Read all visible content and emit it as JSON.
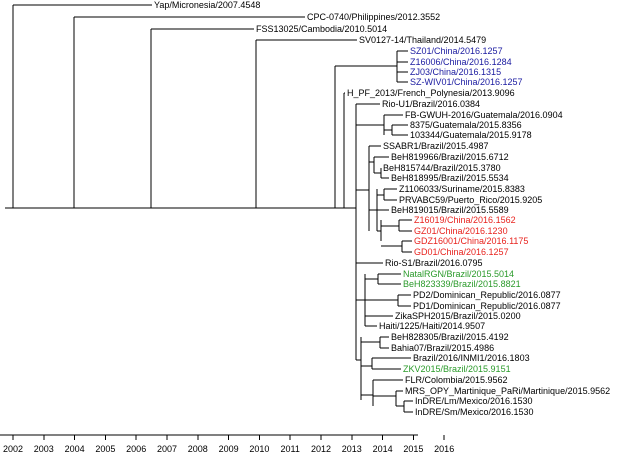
{
  "colors": {
    "default": "#000000",
    "blue": "#1a1aa0",
    "red": "#e8231e",
    "green": "#2a9a2a"
  },
  "time_axis": {
    "ticks": [
      "2002",
      "2003",
      "2004",
      "2005",
      "2006",
      "2007",
      "2008",
      "2009",
      "2010",
      "2011",
      "2012",
      "2013",
      "2014",
      "2015",
      "2016"
    ]
  },
  "taxa": [
    {
      "label": "Yap/Micronesia/2007.4548",
      "color": "default"
    },
    {
      "label": "CPC-0740/Philippines/2012.3552",
      "color": "default"
    },
    {
      "label": "FSS13025/Cambodia/2010.5014",
      "color": "default"
    },
    {
      "label": "SV0127-14/Thailand/2014.5479",
      "color": "default"
    },
    {
      "label": "SZ01/China/2016.1257",
      "color": "blue"
    },
    {
      "label": "Z16006/China/2016.1284",
      "color": "blue"
    },
    {
      "label": "ZJ03/China/2016.1315",
      "color": "blue"
    },
    {
      "label": "SZ-WIV01/China/2016.1257",
      "color": "blue"
    },
    {
      "label": "H_PF_2013/French_Polynesia/2013.9096",
      "color": "default"
    },
    {
      "label": "Rio-U1/Brazil/2016.0384",
      "color": "default"
    },
    {
      "label": "FB-GWUH-2016/Guatemala/2016.0904",
      "color": "default"
    },
    {
      "label": "8375/Guatemala/2015.8356",
      "color": "default"
    },
    {
      "label": "103344/Guatemala/2015.9178",
      "color": "default"
    },
    {
      "label": "SSABR1/Brazil/2015.4987",
      "color": "default"
    },
    {
      "label": "BeH819966/Brazil/2015.6712",
      "color": "default"
    },
    {
      "label": "BeH815744/Brazil/2015.3780",
      "color": "default"
    },
    {
      "label": "BeH818995/Brazil/2015.5534",
      "color": "default"
    },
    {
      "label": "Z1106033/Suriname/2015.8383",
      "color": "default"
    },
    {
      "label": "PRVABC59/Puerto_Rico/2015.9205",
      "color": "default"
    },
    {
      "label": "BeH819015/Brazil/2015.5589",
      "color": "default"
    },
    {
      "label": "Z16019/China/2016.1562",
      "color": "red"
    },
    {
      "label": "GZ01/China/2016.1230",
      "color": "red"
    },
    {
      "label": "GDZ16001/China/2016.1175",
      "color": "red"
    },
    {
      "label": "GD01/China/2016.1257",
      "color": "red"
    },
    {
      "label": "Rio-S1/Brazil/2016.0795",
      "color": "default"
    },
    {
      "label": "NatalRGN/Brazil/2015.5014",
      "color": "green"
    },
    {
      "label": "BeH823339/Brazil/2015.8821",
      "color": "green"
    },
    {
      "label": "PD2/Dominican_Republic/2016.0877",
      "color": "default"
    },
    {
      "label": "PD1/Dominican_Republic/2016.0877",
      "color": "default"
    },
    {
      "label": "ZikaSPH2015/Brazil/2015.0200",
      "color": "default"
    },
    {
      "label": "Haiti/1225/Haiti/2014.9507",
      "color": "default"
    },
    {
      "label": "BeH828305/Brazil/2015.4192",
      "color": "default"
    },
    {
      "label": "Bahia07/Brazil/2015.4986",
      "color": "default"
    },
    {
      "label": "Brazil/2016/INMI1/2016.1803",
      "color": "default"
    },
    {
      "label": "ZKV2015/Brazil/2015.9151",
      "color": "green"
    },
    {
      "label": "FLR/Colombia/2015.9562",
      "color": "default"
    },
    {
      "label": "MRS_OPY_Martinique_PaRi/Martinique/2015.9562",
      "color": "default"
    },
    {
      "label": "InDRE/Lm/Mexico/2016.1530",
      "color": "default"
    },
    {
      "label": "InDRE/Sm/Mexico/2016.1530",
      "color": "default"
    }
  ]
}
